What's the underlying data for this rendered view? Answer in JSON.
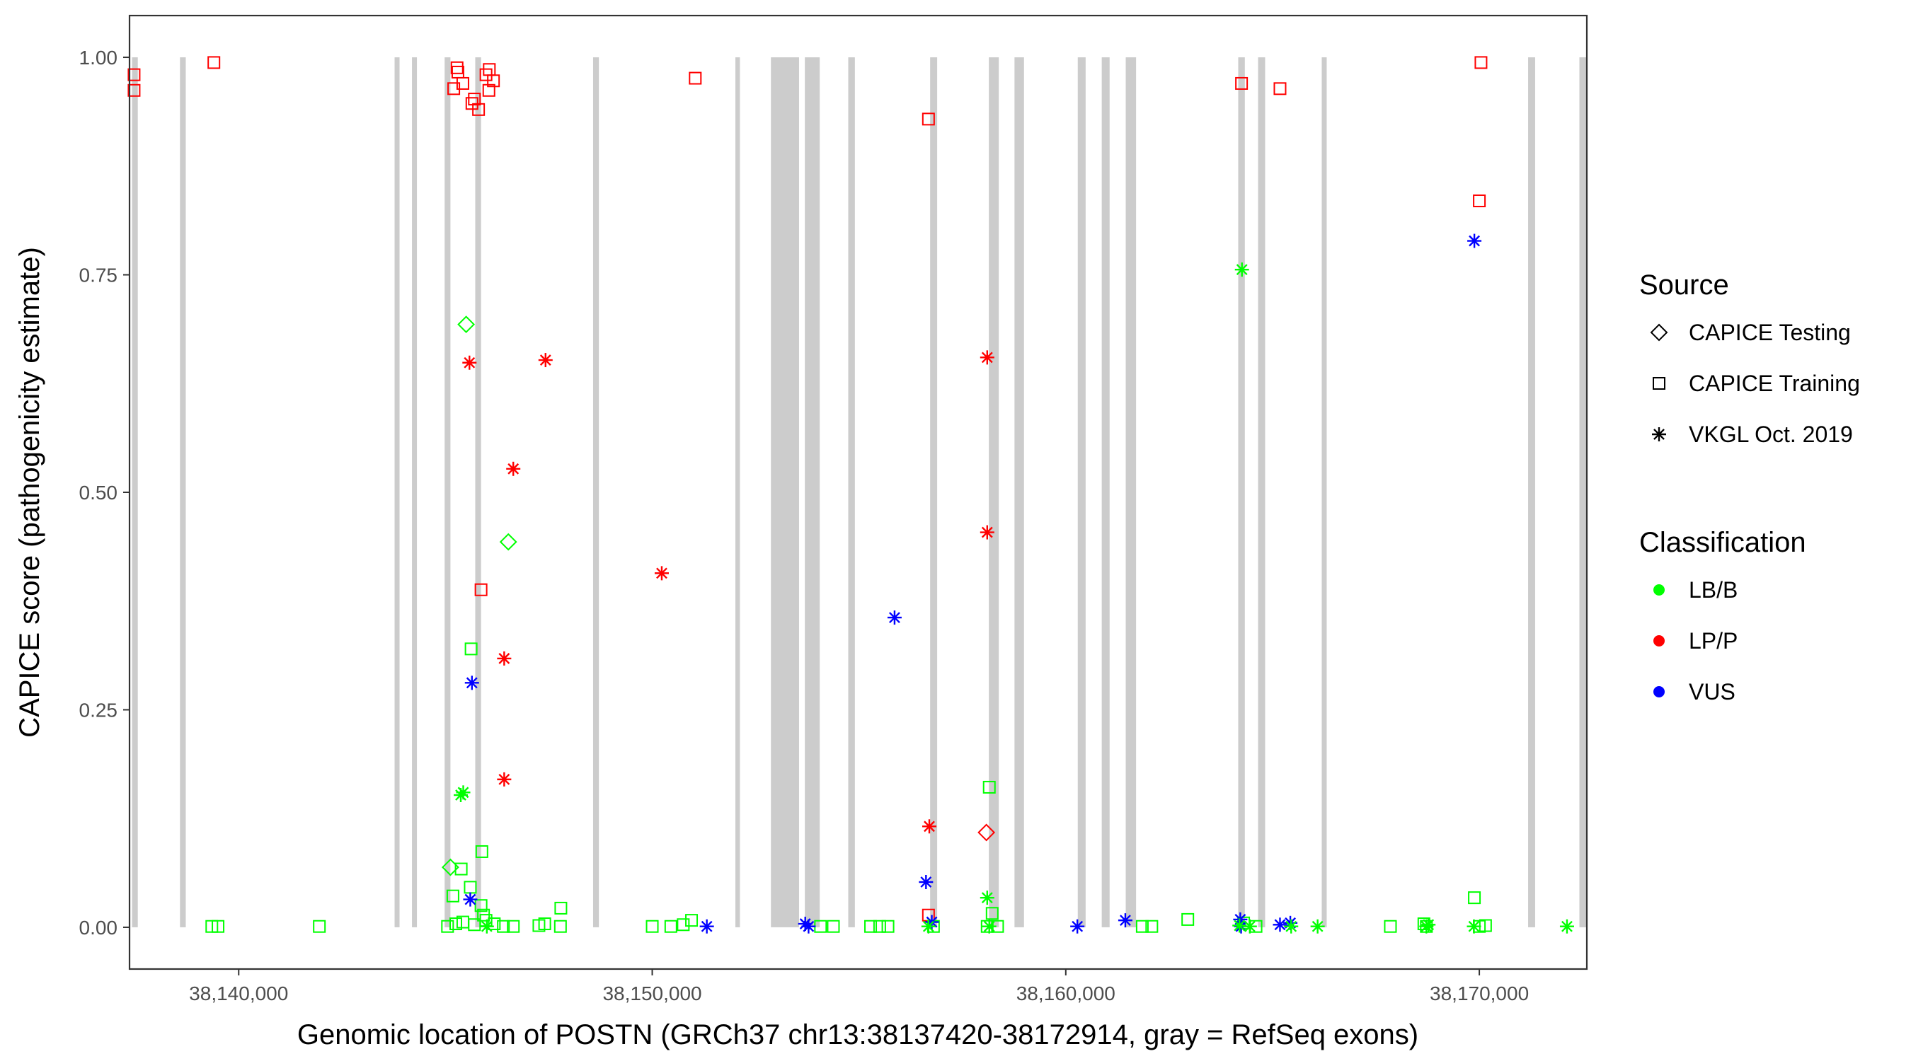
{
  "chart_data": {
    "type": "scatter",
    "title": "",
    "xlabel": "Genomic location of POSTN (GRCh37 chr13:38137420-38172914, gray = RefSeq exons)",
    "ylabel": "CAPICE score (pathogenicity estimate)",
    "xlim": [
      37360,
      72600
    ],
    "ylim": [
      -0.048,
      1.048
    ],
    "x_offset_note": "",
    "x_ticks": [
      {
        "value": 40000,
        "label": "38,140,000"
      },
      {
        "value": 50000,
        "label": "38,150,000"
      },
      {
        "value": 60000,
        "label": "38,160,000"
      },
      {
        "value": 70000,
        "label": "38,170,000"
      }
    ],
    "y_ticks": [
      {
        "value": 0,
        "label": "0.00"
      },
      {
        "value": 0.25,
        "label": "0.25"
      },
      {
        "value": 0.5,
        "label": "0.50"
      },
      {
        "value": 0.75,
        "label": "0.75"
      },
      {
        "value": 1,
        "label": "1.00"
      }
    ],
    "grid": false,
    "exons": [
      [
        37420,
        37560
      ],
      [
        38580,
        38720
      ],
      [
        43770,
        43890
      ],
      [
        44190,
        44310
      ],
      [
        44980,
        45120
      ],
      [
        45720,
        45860
      ],
      [
        48570,
        48710
      ],
      [
        52010,
        52120
      ],
      [
        52870,
        53550
      ],
      [
        53690,
        54050
      ],
      [
        54740,
        54900
      ],
      [
        56720,
        56890
      ],
      [
        58140,
        58380
      ],
      [
        58760,
        58990
      ],
      [
        60290,
        60480
      ],
      [
        60870,
        61060
      ],
      [
        61450,
        61700
      ],
      [
        64170,
        64330
      ],
      [
        64650,
        64820
      ],
      [
        66190,
        66310
      ],
      [
        71180,
        71350
      ],
      [
        72420,
        72600
      ]
    ],
    "legend": {
      "position": "right",
      "source_title": "Source",
      "classification_title": "Classification",
      "source": [
        {
          "label": "CAPICE Testing",
          "shape": "diamond"
        },
        {
          "label": "CAPICE Training",
          "shape": "square"
        },
        {
          "label": "VKGL Oct. 2019",
          "shape": "asterisk"
        }
      ],
      "classification": [
        {
          "label": "LB/B",
          "color": "#00ff00"
        },
        {
          "label": "LP/P",
          "color": "#ff0000"
        },
        {
          "label": "VUS",
          "color": "#0000ff"
        }
      ]
    },
    "colors": {
      "LB/B": "#00ff00",
      "LP/P": "#ff0000",
      "VUS": "#0000ff",
      "exon": "#cccccc"
    },
    "series": [
      {
        "source": "CAPICE Training",
        "class": "LP/P",
        "points": [
          [
            37470,
            0.98
          ],
          [
            37470,
            0.962
          ],
          [
            39400,
            0.994
          ],
          [
            45280,
            0.988
          ],
          [
            45300,
            0.983
          ],
          [
            45420,
            0.97
          ],
          [
            45200,
            0.964
          ],
          [
            45980,
            0.98
          ],
          [
            46060,
            0.986
          ],
          [
            46160,
            0.973
          ],
          [
            45700,
            0.952
          ],
          [
            45640,
            0.947
          ],
          [
            45800,
            0.94
          ],
          [
            46050,
            0.962
          ],
          [
            51040,
            0.976
          ],
          [
            56680,
            0.929
          ],
          [
            64250,
            0.97
          ],
          [
            65180,
            0.964
          ],
          [
            70040,
            0.994
          ],
          [
            70000,
            0.835
          ],
          [
            45860,
            0.388
          ],
          [
            56680,
            0.014
          ]
        ]
      },
      {
        "source": "CAPICE Training",
        "class": "LB/B",
        "points": [
          [
            45620,
            0.32
          ],
          [
            45880,
            0.087
          ],
          [
            45380,
            0.067
          ],
          [
            45600,
            0.046
          ],
          [
            45180,
            0.036
          ],
          [
            45860,
            0.025
          ],
          [
            45920,
            0.014
          ],
          [
            45980,
            0.008
          ],
          [
            46180,
            0.004
          ],
          [
            45050,
            0.001
          ],
          [
            45250,
            0.004
          ],
          [
            45420,
            0.006
          ],
          [
            45700,
            0.003
          ],
          [
            46400,
            0.001
          ],
          [
            46640,
            0.001
          ],
          [
            47260,
            0.002
          ],
          [
            47400,
            0.004
          ],
          [
            47790,
            0.022
          ],
          [
            47780,
            0.001
          ],
          [
            39350,
            0.001
          ],
          [
            39500,
            0.001
          ],
          [
            41950,
            0.001
          ],
          [
            50000,
            0.001
          ],
          [
            50450,
            0.001
          ],
          [
            50750,
            0.003
          ],
          [
            50950,
            0.008
          ],
          [
            54070,
            0.001
          ],
          [
            54380,
            0.001
          ],
          [
            55280,
            0.001
          ],
          [
            55500,
            0.001
          ],
          [
            55700,
            0.001
          ],
          [
            56800,
            0.001
          ],
          [
            58150,
            0.161
          ],
          [
            58220,
            0.016
          ],
          [
            58100,
            0.001
          ],
          [
            58350,
            0.001
          ],
          [
            61850,
            0.001
          ],
          [
            62080,
            0.001
          ],
          [
            62950,
            0.009
          ],
          [
            64300,
            0.005
          ],
          [
            64600,
            0.001
          ],
          [
            67850,
            0.001
          ],
          [
            68660,
            0.004
          ],
          [
            68720,
            0.001
          ],
          [
            69880,
            0.034
          ],
          [
            70000,
            0.001
          ],
          [
            70150,
            0.002
          ]
        ]
      },
      {
        "source": "CAPICE Testing",
        "class": "LB/B",
        "points": [
          [
            45500,
            0.693
          ],
          [
            46520,
            0.443
          ],
          [
            45120,
            0.069
          ]
        ]
      },
      {
        "source": "CAPICE Testing",
        "class": "LP/P",
        "points": [
          [
            58080,
            0.109
          ]
        ]
      },
      {
        "source": "VKGL Oct. 2019",
        "class": "LP/P",
        "points": [
          [
            45580,
            0.649
          ],
          [
            47420,
            0.652
          ],
          [
            46640,
            0.527
          ],
          [
            50230,
            0.407
          ],
          [
            46420,
            0.309
          ],
          [
            46420,
            0.17
          ],
          [
            58100,
            0.655
          ],
          [
            58100,
            0.454
          ],
          [
            56700,
            0.116
          ]
        ]
      },
      {
        "source": "VKGL Oct. 2019",
        "class": "VUS",
        "points": [
          [
            45640,
            0.281
          ],
          [
            45600,
            0.032
          ],
          [
            55860,
            0.356
          ],
          [
            56620,
            0.052
          ],
          [
            56760,
            0.006
          ],
          [
            51320,
            0.001
          ],
          [
            53700,
            0.004
          ],
          [
            53780,
            0.001
          ],
          [
            60280,
            0.001
          ],
          [
            61440,
            0.008
          ],
          [
            64220,
            0.009
          ],
          [
            64240,
            0.001
          ],
          [
            65180,
            0.003
          ],
          [
            65430,
            0.005
          ],
          [
            69880,
            0.789
          ]
        ]
      },
      {
        "source": "VKGL Oct. 2019",
        "class": "LB/B",
        "points": [
          [
            45370,
            0.152
          ],
          [
            45430,
            0.155
          ],
          [
            64260,
            0.756
          ],
          [
            58100,
            0.034
          ],
          [
            56680,
            0.001
          ],
          [
            58150,
            0.001
          ],
          [
            64200,
            0.002
          ],
          [
            64450,
            0.001
          ],
          [
            65450,
            0.001
          ],
          [
            66090,
            0.001
          ],
          [
            68770,
            0.003
          ],
          [
            68720,
            0.001
          ],
          [
            69870,
            0.001
          ],
          [
            72120,
            0.001
          ],
          [
            46000,
            0.001
          ]
        ]
      }
    ]
  }
}
